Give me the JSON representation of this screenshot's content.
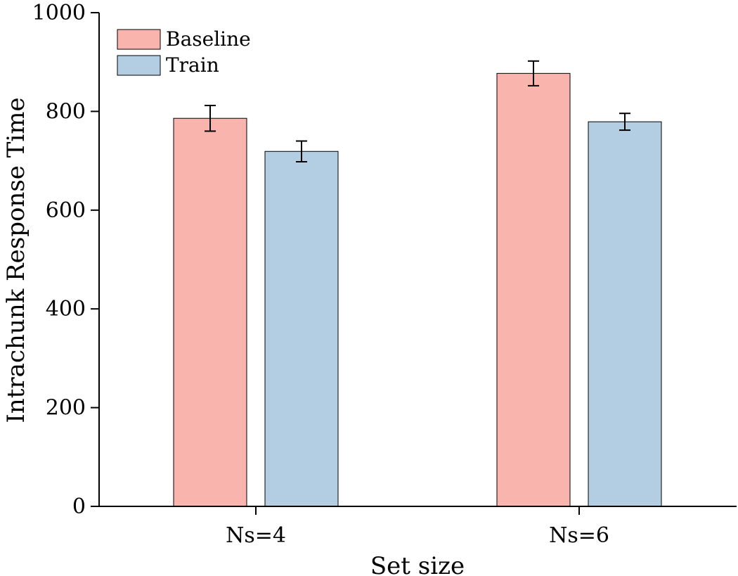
{
  "chart_data": {
    "type": "bar",
    "title": "",
    "xlabel": "Set size",
    "ylabel": "Intrachunk Response Time",
    "categories": [
      "Ns=4",
      "Ns=6"
    ],
    "ylim": [
      0,
      1000
    ],
    "yticks": [
      0,
      200,
      400,
      600,
      800,
      1000
    ],
    "grid": false,
    "legend_position": "top-left",
    "series": [
      {
        "name": "Baseline",
        "color": "#FAB4AE",
        "values": [
          786,
          877
        ],
        "errors": [
          26,
          25
        ]
      },
      {
        "name": "Train",
        "color": "#B3CDE3",
        "values": [
          719,
          779
        ],
        "errors": [
          21,
          17
        ]
      }
    ]
  }
}
